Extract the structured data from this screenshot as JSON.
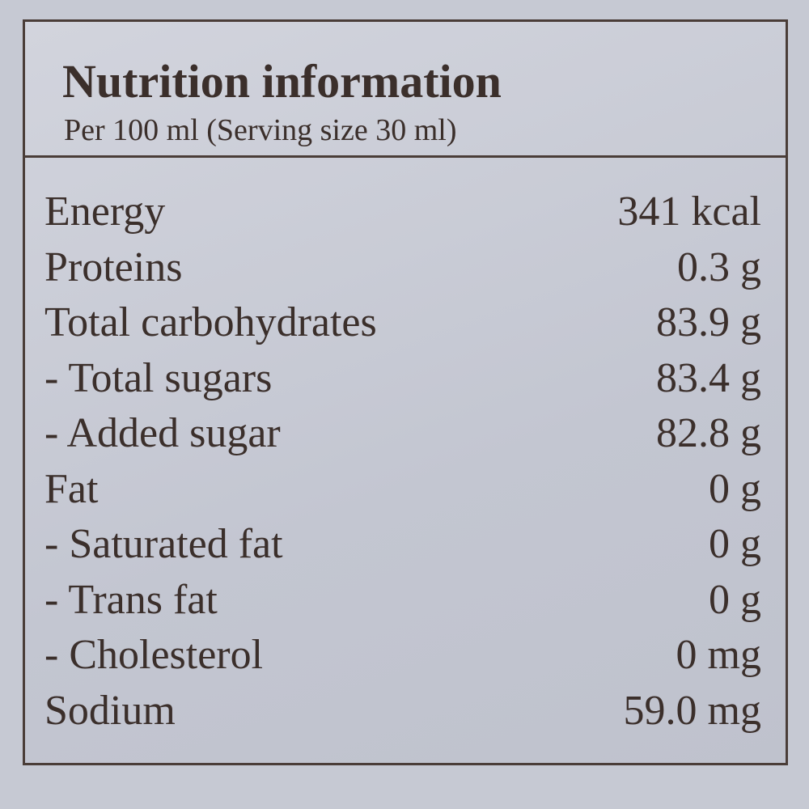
{
  "header": {
    "title": "Nutrition information",
    "subtitle": "Per 100 ml (Serving size 30 ml)"
  },
  "table": {
    "rows": [
      [
        "Energy",
        "341 kcal"
      ],
      [
        "Proteins",
        "0.3 g"
      ],
      [
        "Total carbohydrates",
        "83.9 g"
      ],
      [
        "- Total sugars",
        "83.4 g"
      ],
      [
        "- Added sugar",
        "82.8 g"
      ],
      [
        "Fat",
        "0 g"
      ],
      [
        "- Saturated fat",
        "0 g"
      ],
      [
        "- Trans fat",
        "0 g"
      ],
      [
        "- Cholesterol",
        "0 mg"
      ],
      [
        "Sodium",
        "59.0 mg"
      ]
    ]
  }
}
